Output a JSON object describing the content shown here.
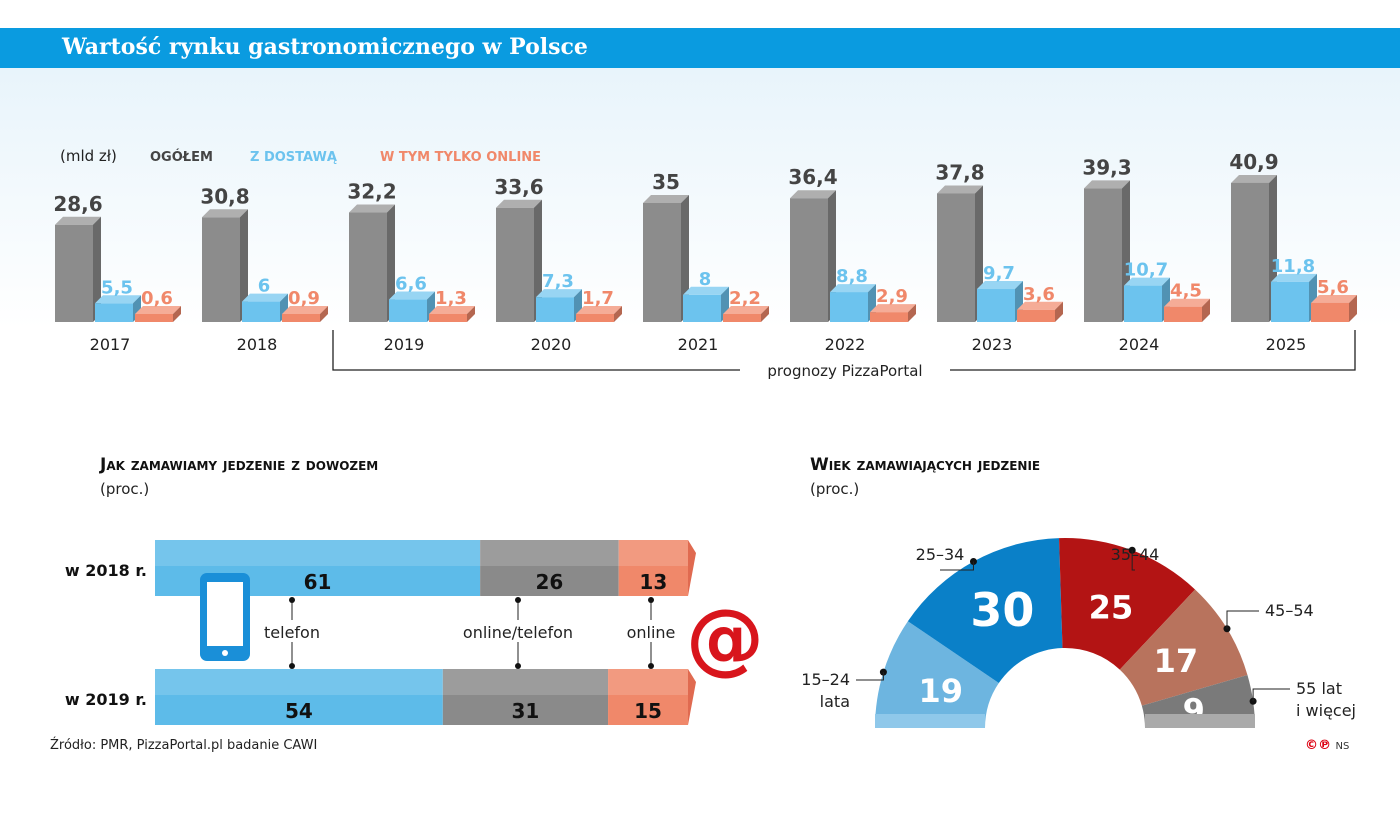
{
  "title": "Wartość rynku gastronomicznego w Polsce",
  "colors": {
    "total": "#8c8c8c",
    "delivery": "#6cc3ee",
    "online": "#f0886a",
    "header": "#0a9be0"
  },
  "chart_data": [
    {
      "type": "bar",
      "unit": "(mld zł)",
      "categories": [
        "2017",
        "2018",
        "2019",
        "2020",
        "2021",
        "2022",
        "2023",
        "2024",
        "2025"
      ],
      "series": [
        {
          "name": "OGÓŁEM",
          "values": [
            28.6,
            30.8,
            32.2,
            33.6,
            35,
            36.4,
            37.8,
            39.3,
            40.9
          ],
          "labels": [
            "28,6",
            "30,8",
            "32,2",
            "33,6",
            "35",
            "36,4",
            "37,8",
            "39,3",
            "40,9"
          ]
        },
        {
          "name": "Z DOSTAWĄ",
          "values": [
            5.5,
            6,
            6.6,
            7.3,
            8,
            8.8,
            9.7,
            10.7,
            11.8
          ],
          "labels": [
            "5,5",
            "6",
            "6,6",
            "7,3",
            "8",
            "8,8",
            "9,7",
            "10,7",
            "11,8"
          ]
        },
        {
          "name": "W TYM TYLKO ONLINE",
          "values": [
            0.6,
            0.9,
            1.3,
            1.7,
            2.2,
            2.9,
            3.6,
            4.5,
            5.6
          ],
          "labels": [
            "0,6",
            "0,9",
            "1,3",
            "1,7",
            "2,2",
            "2,9",
            "3,6",
            "4,5",
            "5,6"
          ]
        }
      ],
      "annotation": "prognozy PizzaPortal"
    },
    {
      "type": "bar",
      "stacked": true,
      "title": "Jak zamawiamy jedzenie z dowozem",
      "subtitle": "(proc.)",
      "categories": [
        "w 2018 r.",
        "w 2019 r."
      ],
      "series": [
        {
          "name": "telefon",
          "values": [
            61,
            54
          ]
        },
        {
          "name": "online/telefon",
          "values": [
            26,
            31
          ]
        },
        {
          "name": "online",
          "values": [
            13,
            15
          ]
        }
      ]
    },
    {
      "type": "pie",
      "variant": "semicircle",
      "title": "Wiek zamawiających jedzenie",
      "subtitle": "(proc.)",
      "categories": [
        "15–24 lata",
        "25–34",
        "35–44",
        "45–54",
        "55 lat i więcej"
      ],
      "values": [
        19,
        30,
        25,
        17,
        9
      ],
      "colors": [
        "#6db5e0",
        "#0a80c8",
        "#b31414",
        "#b8735d",
        "#7a7a7a"
      ]
    }
  ],
  "source": "Źródło: PMR, PizzaPortal.pl badanie CAWI",
  "credit": "NS"
}
